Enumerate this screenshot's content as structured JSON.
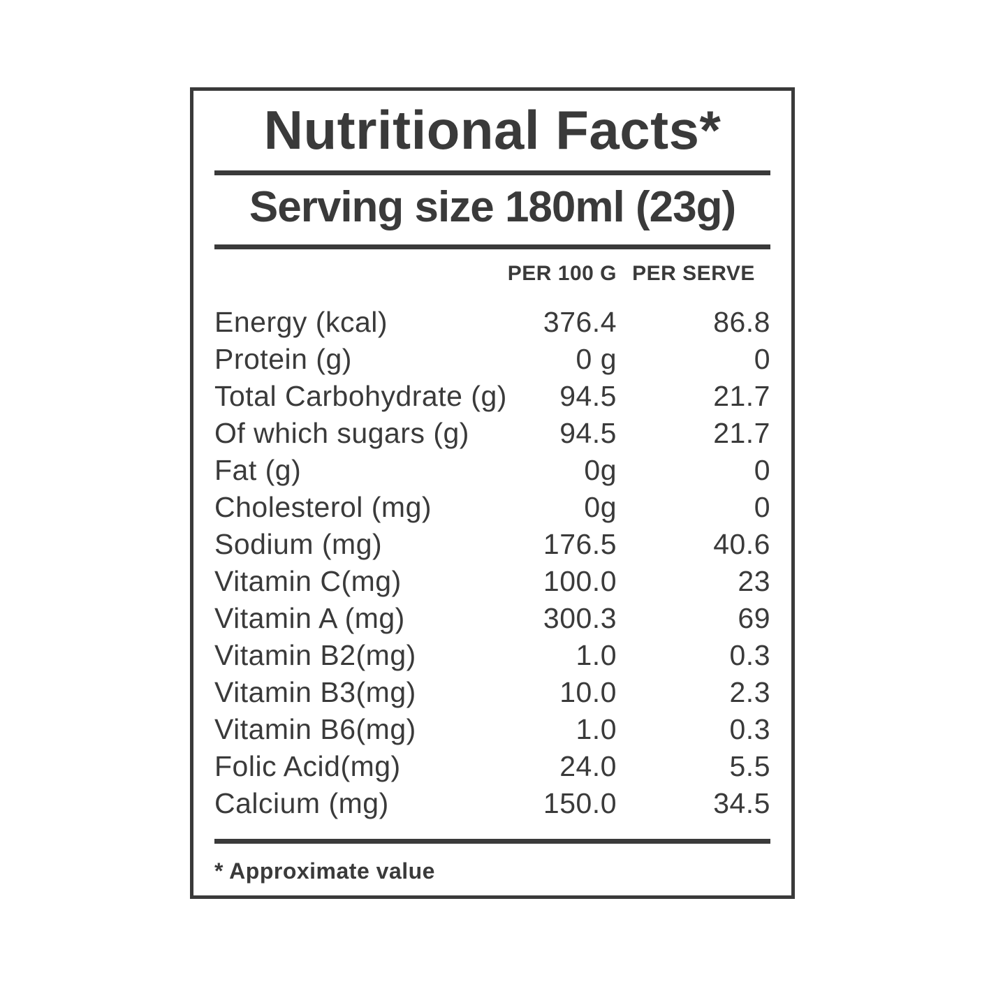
{
  "label": {
    "title": "Nutritional Facts*",
    "serving_line": "Serving size 180ml (23g)",
    "columns": {
      "per_100g": "PER 100 G",
      "per_serve": "PER SERVE"
    },
    "rows": [
      {
        "name": "Energy (kcal)",
        "per_100g": "376.4",
        "per_serve": "86.8"
      },
      {
        "name": "Protein (g)",
        "per_100g": "0 g",
        "per_serve": "0"
      },
      {
        "name": "Total Carbohydrate (g)",
        "per_100g": "94.5",
        "per_serve": "21.7"
      },
      {
        "name": "Of which sugars (g)",
        "per_100g": "94.5",
        "per_serve": "21.7"
      },
      {
        "name": "Fat (g)",
        "per_100g": "0g",
        "per_serve": "0"
      },
      {
        "name": "Cholesterol (mg)",
        "per_100g": "0g",
        "per_serve": "0"
      },
      {
        "name": "Sodium (mg)",
        "per_100g": "176.5",
        "per_serve": "40.6"
      },
      {
        "name": "Vitamin C(mg)",
        "per_100g": "100.0",
        "per_serve": "23"
      },
      {
        "name": "Vitamin A (mg)",
        "per_100g": "300.3",
        "per_serve": "69"
      },
      {
        "name": "Vitamin B2(mg)",
        "per_100g": "1.0",
        "per_serve": "0.3"
      },
      {
        "name": "Vitamin B3(mg)",
        "per_100g": "10.0",
        "per_serve": "2.3"
      },
      {
        "name": "Vitamin B6(mg)",
        "per_100g": "1.0",
        "per_serve": "0.3"
      },
      {
        "name": "Folic Acid(mg)",
        "per_100g": "24.0",
        "per_serve": "5.5"
      },
      {
        "name": "Calcium (mg)",
        "per_100g": "150.0",
        "per_serve": "34.5"
      }
    ],
    "footnote": "* Approximate value",
    "colors": {
      "text": "#3a3a3a",
      "background": "#ffffff"
    }
  }
}
